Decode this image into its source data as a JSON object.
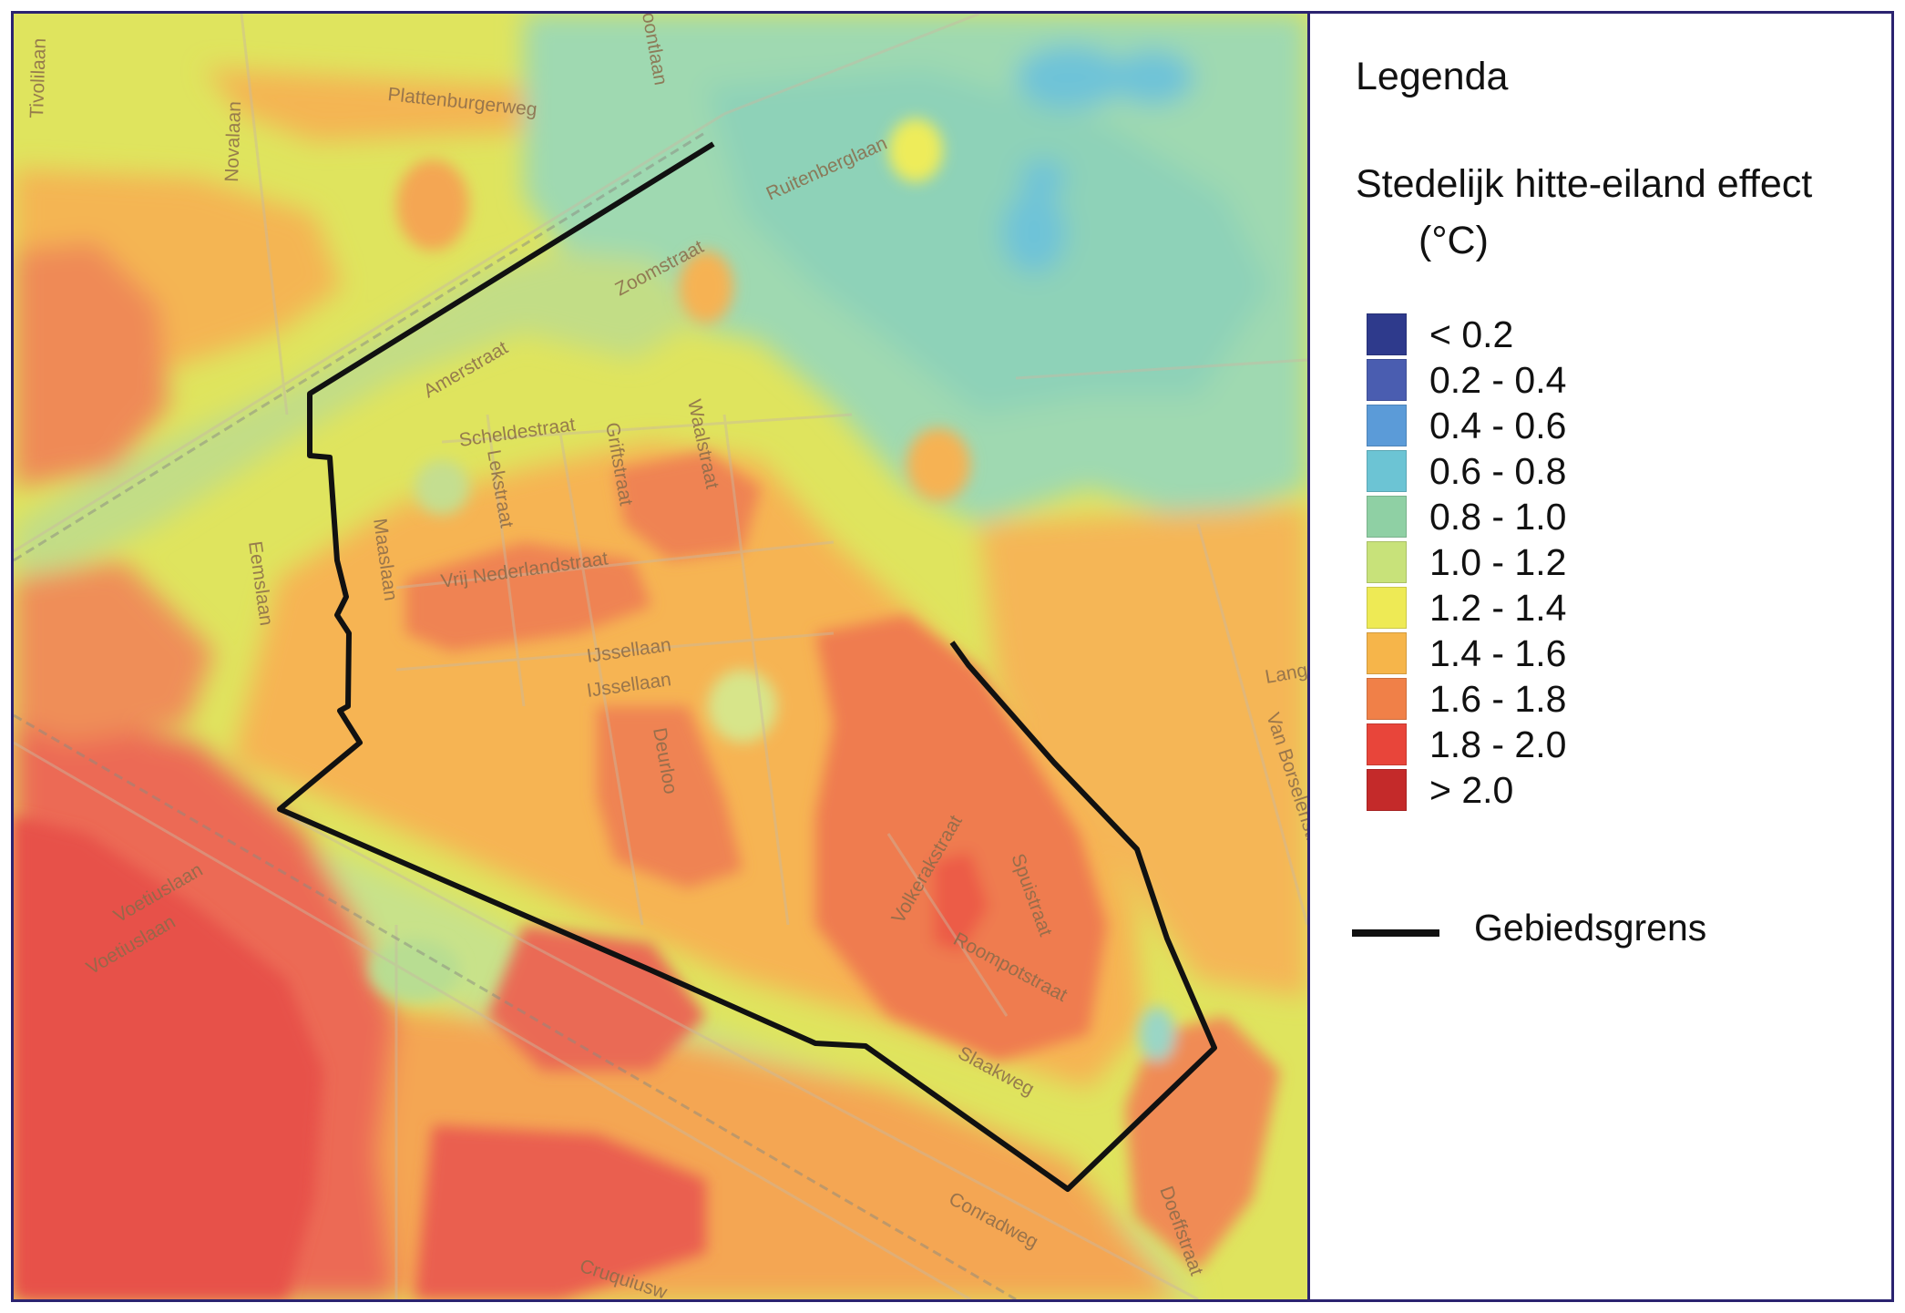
{
  "legend": {
    "title": "Legenda",
    "subtitle": "Stedelijk hitte-eiland effect",
    "unit": "(°C)",
    "classes": [
      {
        "label": "< 0.2",
        "color": "#2e3a8c"
      },
      {
        "label": "0.2 - 0.4",
        "color": "#4a5db0"
      },
      {
        "label": "0.4 - 0.6",
        "color": "#5b9bd8"
      },
      {
        "label": "0.6 - 0.8",
        "color": "#6cc4d4"
      },
      {
        "label": "0.8 - 1.0",
        "color": "#8fd0a4"
      },
      {
        "label": "1.0 - 1.2",
        "color": "#c8e27a"
      },
      {
        "label": "1.2 - 1.4",
        "color": "#eeea55"
      },
      {
        "label": "1.4 - 1.6",
        "color": "#f6b54a"
      },
      {
        "label": "1.6 - 1.8",
        "color": "#f08048"
      },
      {
        "label": "1.8 - 2.0",
        "color": "#e8453a"
      },
      {
        "label": "> 2.0",
        "color": "#c42a2a"
      }
    ],
    "boundary_label": "Gebiedsgrens"
  },
  "map": {
    "boundary_color": "#111111",
    "streets": {
      "tivolilaan": "Tivolilaan",
      "plattenburgerweg": "Plattenburgerweg",
      "novalaan": "Novalaan",
      "oontlaan": "oontlaan",
      "ruitenberglaan": "Ruitenberglaan",
      "zoomstraat": "Zoomstraat",
      "amerstraat": "Amerstraat",
      "scheldestraat": "Scheldestraat",
      "griftstraat": "Griftstraat",
      "waalstraat": "Waalstraat",
      "lekstraat": "Lekstraat",
      "maaslaan": "Maaslaan",
      "eemslaan": "Eemslaan",
      "vrij_nederlandstraat": "Vrij Nederlandstraat",
      "ijssellaan_1": "IJssellaan",
      "ijssellaan_2": "IJssellaan",
      "deurloo": "Deurloo",
      "volkerakstraat": "Volkerakstraat",
      "spuistraat": "Spuistraat",
      "roompotstraat": "Roompotstraat",
      "slaakweg": "Slaakweg",
      "voetiuslaan_1": "Voetiuslaan",
      "voetiuslaan_2": "Voetiuslaan",
      "conradweg": "Conradweg",
      "doeffstraat": "Doeffstraat",
      "van_borselenstr": "Van Borselenstr",
      "lang": "Lang",
      "cruquiusw": "Cruquiusw"
    }
  }
}
